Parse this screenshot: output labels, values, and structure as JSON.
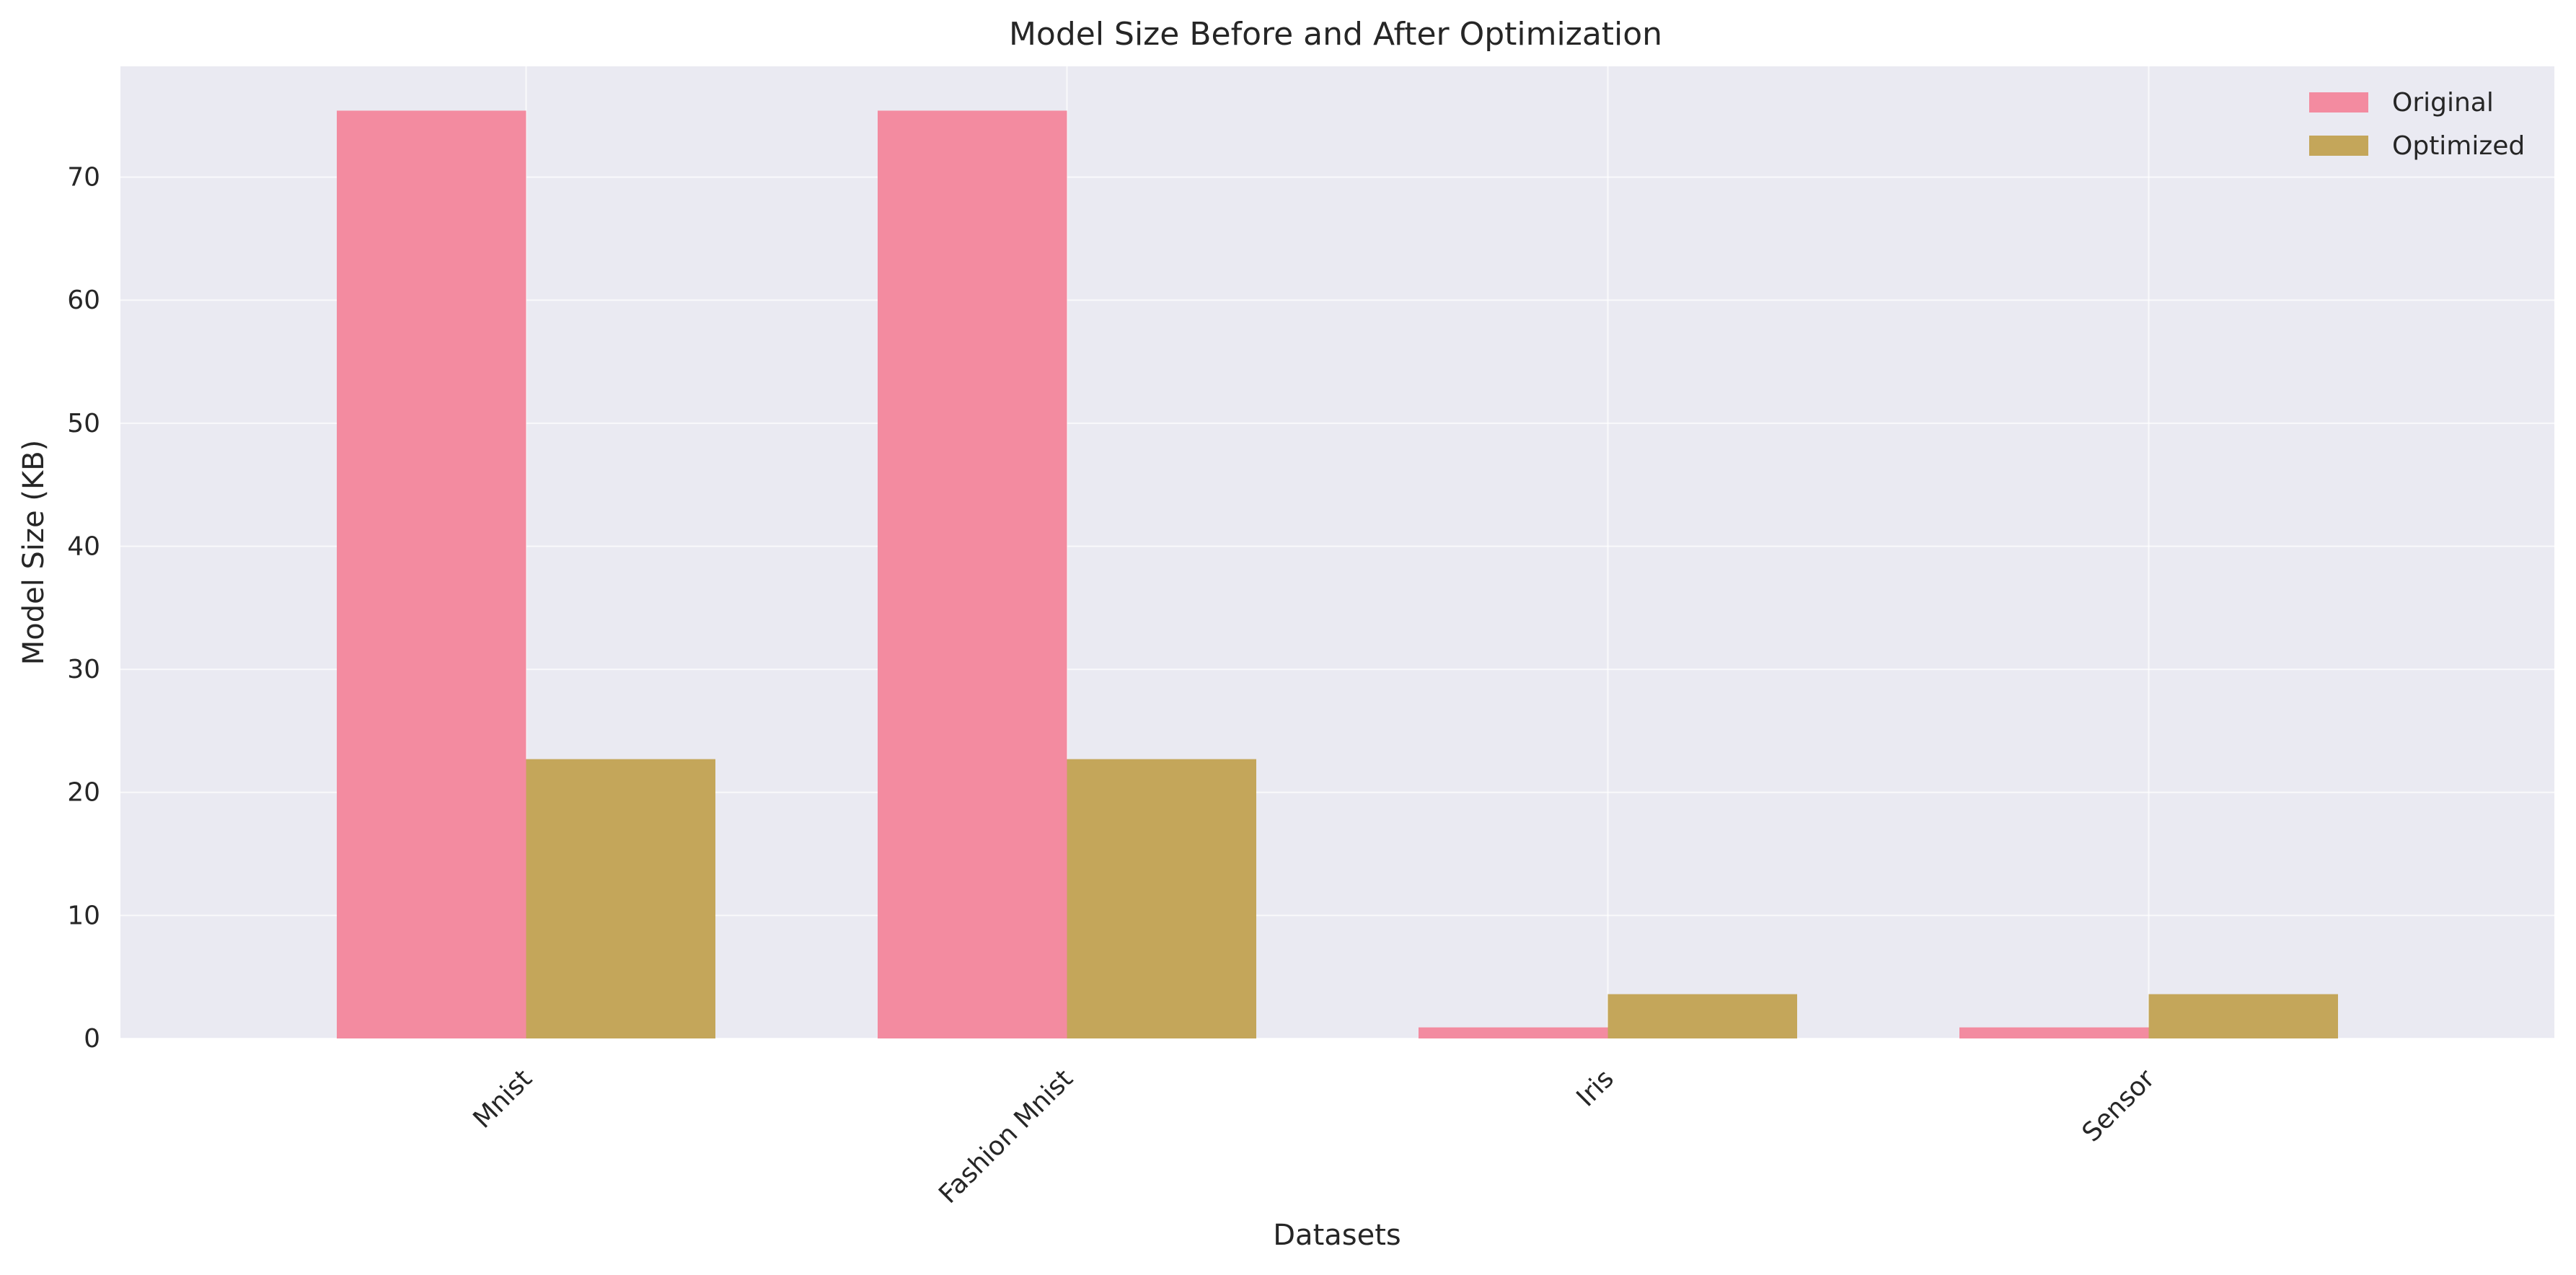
{
  "chart_data": {
    "type": "bar",
    "title": "Model Size Before and After Optimization",
    "xlabel": "Datasets",
    "ylabel": "Model Size (KB)",
    "categories": [
      "Mnist",
      "Fashion Mnist",
      "Iris",
      "Sensor"
    ],
    "series": [
      {
        "name": "Original",
        "values": [
          75.4,
          75.4,
          0.9,
          0.9
        ],
        "color": "#f38ba0"
      },
      {
        "name": "Optimized",
        "values": [
          22.7,
          22.7,
          3.6,
          3.6
        ],
        "color": "#c4a65a"
      }
    ],
    "yticks": [
      0,
      10,
      20,
      30,
      40,
      50,
      60,
      70
    ],
    "ylim": [
      0,
      79
    ],
    "grid": true,
    "legend_position": "top-right",
    "background": "#eaeaf2",
    "grid_color": "#ffffff"
  }
}
